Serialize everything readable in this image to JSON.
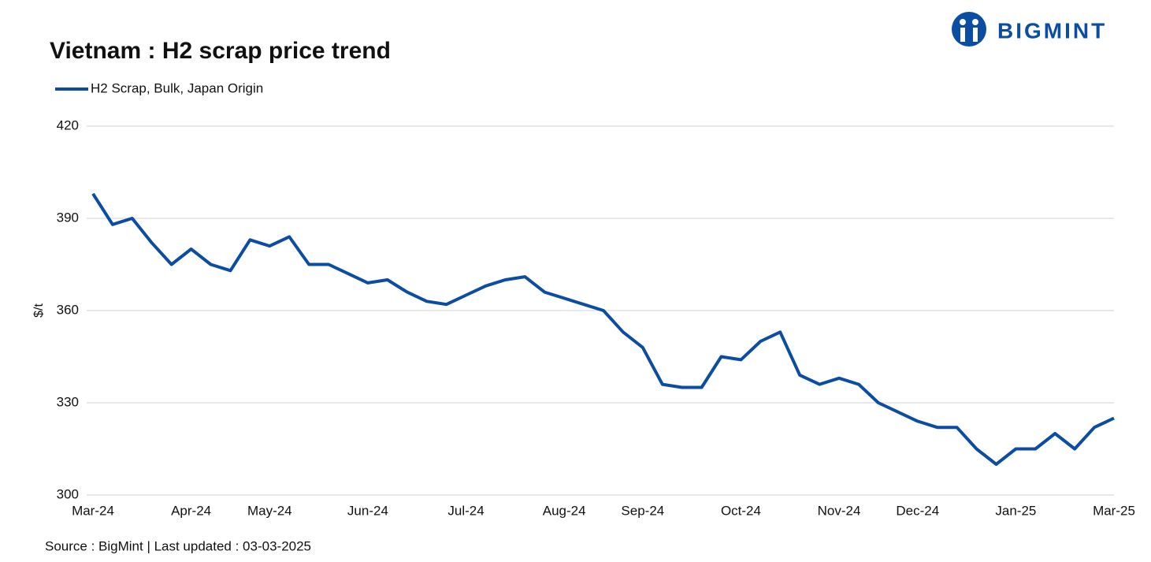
{
  "chart_data": {
    "type": "line",
    "title": "Vietnam : H2 scrap price trend",
    "brand": "BIGMINT",
    "y_label": "$/t",
    "source": "Source : BigMint | Last updated : 03-03-2025",
    "categories": [
      "Mar-24",
      null,
      null,
      null,
      null,
      "Apr-24",
      null,
      null,
      null,
      "May-24",
      null,
      null,
      null,
      null,
      "Jun-24",
      null,
      null,
      null,
      null,
      "Jul-24",
      null,
      null,
      null,
      null,
      "Aug-24",
      null,
      null,
      null,
      "Sep-24",
      null,
      null,
      null,
      null,
      "Oct-24",
      null,
      null,
      null,
      null,
      "Nov-24",
      null,
      null,
      null,
      "Dec-24",
      null,
      null,
      null,
      null,
      "Jan-25",
      null,
      null,
      null,
      null,
      "Mar-25"
    ],
    "series": [
      {
        "name": "H2 Scrap, Bulk, Japan Origin",
        "color": "#0a4da2",
        "values": [
          398,
          388,
          390,
          382,
          375,
          380,
          375,
          373,
          383,
          381,
          384,
          375,
          375,
          372,
          369,
          370,
          366,
          363,
          362,
          365,
          368,
          370,
          371,
          366,
          364,
          362,
          360,
          353,
          348,
          336,
          335,
          335,
          345,
          344,
          350,
          353,
          339,
          336,
          338,
          336,
          330,
          327,
          324,
          322,
          322,
          315,
          310,
          315,
          315,
          320,
          315,
          322,
          325
        ]
      }
    ],
    "ylim": [
      300,
      420
    ],
    "yticks": [
      300,
      330,
      360,
      390,
      420
    ],
    "grid": true
  }
}
